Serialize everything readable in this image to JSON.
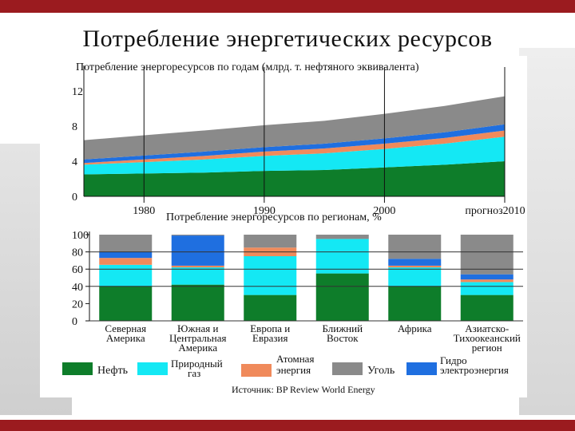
{
  "slide_title": "Потребление энергетических ресурсов",
  "source": "Источник: BP Review World Energy",
  "colors": {
    "oil": "#0e7d2a",
    "gas": "#14e8f4",
    "nuclear": "#f08a5b",
    "coal": "#8a8a8a",
    "hydro": "#1f6fe0",
    "accent": "#9b1b1f"
  },
  "chart_data": [
    {
      "type": "area",
      "title": "Потребление энергоресурсов по годам (млрд. т. нефтяного эквивалента)",
      "x_tick_labels": [
        "1980",
        "1990",
        "2000",
        "прогноз2010"
      ],
      "y_tick_labels": [
        "0",
        "4",
        "8",
        "12"
      ],
      "ylim": [
        0,
        14
      ],
      "x": [
        1975,
        1980,
        1985,
        1990,
        1995,
        2000,
        2005,
        2010
      ],
      "series": [
        {
          "name": "Нефть",
          "values": [
            2.5,
            2.6,
            2.7,
            2.9,
            3.0,
            3.3,
            3.6,
            4.0
          ]
        },
        {
          "name": "Природный газ",
          "values": [
            1.1,
            1.3,
            1.5,
            1.7,
            1.9,
            2.1,
            2.4,
            2.8
          ]
        },
        {
          "name": "Атомная энергия",
          "values": [
            0.2,
            0.3,
            0.4,
            0.5,
            0.55,
            0.6,
            0.65,
            0.7
          ]
        },
        {
          "name": "Гидро электроэнергия",
          "values": [
            0.4,
            0.45,
            0.5,
            0.5,
            0.55,
            0.6,
            0.65,
            0.7
          ]
        },
        {
          "name": "Уголь",
          "values": [
            2.2,
            2.3,
            2.4,
            2.5,
            2.6,
            2.8,
            3.0,
            3.2
          ]
        }
      ]
    },
    {
      "type": "bar",
      "stacked": true,
      "title": "Потребление энергоресурсов по регионам, %",
      "y_tick_labels": [
        "0",
        "20",
        "40",
        "60",
        "80",
        "100"
      ],
      "ylim": [
        0,
        100
      ],
      "categories": [
        "Северная Америка",
        "Южная и Центральная Америка",
        "Европа и Евразия",
        "Ближний Восток",
        "Африка",
        "Азиатско-Тихоокеанский регион"
      ],
      "series": [
        {
          "name": "Нефть",
          "values": [
            40,
            42,
            30,
            55,
            40,
            30
          ]
        },
        {
          "name": "Природный газ",
          "values": [
            25,
            20,
            45,
            40,
            22,
            15
          ]
        },
        {
          "name": "Атомная энергия",
          "values": [
            8,
            2,
            10,
            0,
            2,
            3
          ]
        },
        {
          "name": "Гидро",
          "values": [
            7,
            35,
            0,
            0,
            8,
            6
          ]
        },
        {
          "name": "Уголь",
          "values": [
            20,
            1,
            15,
            5,
            28,
            46
          ]
        }
      ]
    }
  ],
  "legend": {
    "oil": "Нефть",
    "gas_line1": "Природный",
    "gas_line2": "газ",
    "nuclear_line1": "Атомная",
    "nuclear_line2": "энергия",
    "coal": "Уголь",
    "hydro_line1": "Гидро",
    "hydro_line2": "электроэнергия"
  },
  "bar_category_lines": [
    [
      "Северная",
      "Америка"
    ],
    [
      "Южная и",
      "Центральная",
      "Америка"
    ],
    [
      "Европа и",
      "Евразия"
    ],
    [
      "Ближний",
      "Восток"
    ],
    [
      "Африка"
    ],
    [
      "Азиатско-",
      "Тихоокеанский",
      "регион"
    ]
  ]
}
